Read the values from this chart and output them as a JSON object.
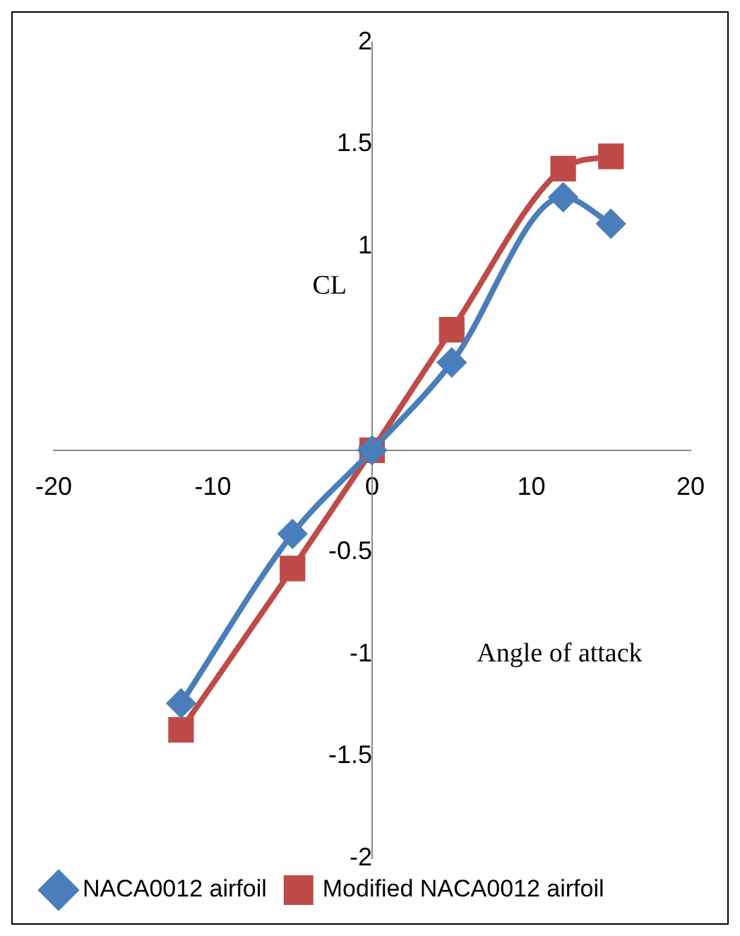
{
  "chart_data": {
    "type": "line",
    "xlabel": "Angle of attack",
    "ylabel": "CL",
    "xlim": [
      -20,
      20
    ],
    "xticks": [
      -20,
      -10,
      0,
      10,
      20
    ],
    "ylim": [
      -2,
      2
    ],
    "yticks": [
      -2,
      -1.5,
      -1,
      -0.5,
      0,
      1,
      1.5,
      2
    ],
    "series": [
      {
        "name": "NACA0012 airfoil",
        "color": "#4a7ebb",
        "marker": "diamond",
        "x": [
          -12,
          -5,
          0,
          5,
          12,
          15
        ],
        "values": [
          -1.24,
          -0.41,
          0,
          0.43,
          1.24,
          1.11
        ]
      },
      {
        "name": "Modified NACA0012 airfoil",
        "color": "#be4b48",
        "marker": "square",
        "x": [
          -12,
          -5,
          0,
          5,
          12,
          15
        ],
        "values": [
          -1.37,
          -0.58,
          0,
          0.59,
          1.38,
          1.44
        ]
      }
    ],
    "grid": false,
    "legend": "bottom"
  }
}
